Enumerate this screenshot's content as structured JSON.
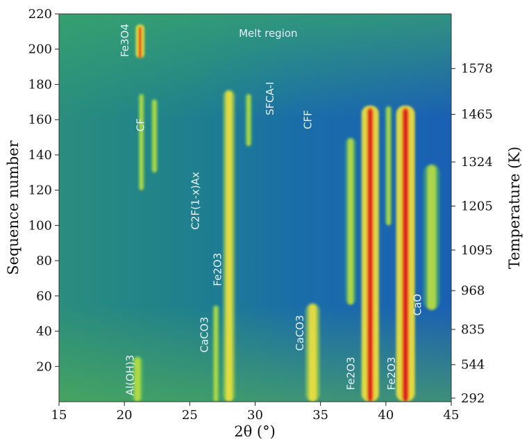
{
  "chart_data": {
    "type": "heatmap",
    "title": "",
    "xlabel": "2θ (°)",
    "ylabel_left": "Sequence number",
    "ylabel_right": "Temperature (K)",
    "xlim": [
      15,
      45
    ],
    "ylim": [
      0,
      220
    ],
    "x_ticks": [
      "15",
      "20",
      "25",
      "30",
      "35",
      "40",
      "45"
    ],
    "y_ticks": [
      "20",
      "40",
      "60",
      "80",
      "100",
      "120",
      "140",
      "160",
      "180",
      "200",
      "220"
    ],
    "right_ticks": [
      {
        "seq": 2,
        "label": "292"
      },
      {
        "seq": 21,
        "label": "544"
      },
      {
        "seq": 41,
        "label": "835"
      },
      {
        "seq": 63,
        "label": "968"
      },
      {
        "seq": 86,
        "label": "1095"
      },
      {
        "seq": 111,
        "label": "1205"
      },
      {
        "seq": 136,
        "label": "1324"
      },
      {
        "seq": 163,
        "label": "1465"
      },
      {
        "seq": 189,
        "label": "1578"
      }
    ],
    "colors": {
      "background": "#1c63b4",
      "background_low": "#1f8a8a",
      "medium": "#4fbf5a",
      "high": "#bfe040",
      "very_high": "#f2e33c",
      "peak": "#f0551e",
      "peak_core": "#d61b1b"
    },
    "bands": [
      {
        "x": 21.0,
        "y": [
          0,
          26
        ],
        "w": 0.5,
        "c": "medium"
      },
      {
        "x": 21.3,
        "y": [
          120,
          175
        ],
        "w": 0.28,
        "c": "medium"
      },
      {
        "x": 22.3,
        "y": [
          130,
          172
        ],
        "w": 0.3,
        "c": "medium"
      },
      {
        "x": 21.2,
        "y": [
          195,
          214
        ],
        "w": 0.3,
        "c": "peak"
      },
      {
        "x": 27.0,
        "y": [
          0,
          55
        ],
        "w": 0.3,
        "c": "medium"
      },
      {
        "x": 28.0,
        "y": [
          0,
          177
        ],
        "w": 0.5,
        "c": "high"
      },
      {
        "x": 29.5,
        "y": [
          145,
          175
        ],
        "w": 0.3,
        "c": "medium"
      },
      {
        "x": 34.4,
        "y": [
          0,
          56
        ],
        "w": 0.6,
        "c": "high"
      },
      {
        "x": 37.3,
        "y": [
          55,
          150
        ],
        "w": 0.45,
        "c": "medium"
      },
      {
        "x": 38.8,
        "y": [
          0,
          168
        ],
        "w": 0.6,
        "c": "peak"
      },
      {
        "x": 40.2,
        "y": [
          100,
          168
        ],
        "w": 0.3,
        "c": "medium"
      },
      {
        "x": 41.5,
        "y": [
          0,
          168
        ],
        "w": 0.65,
        "c": "peak"
      },
      {
        "x": 43.5,
        "y": [
          52,
          135
        ],
        "w": 0.7,
        "c": "medium"
      }
    ],
    "annotations": [
      {
        "text": "Fe3O4",
        "x": 20.3,
        "y": 205,
        "rotate": true
      },
      {
        "text": "Melt region",
        "x": 31.0,
        "y": 207,
        "rotate": false
      },
      {
        "text": "SFCA-I",
        "x": 31.4,
        "y": 172,
        "rotate": true
      },
      {
        "text": "CF",
        "x": 21.5,
        "y": 157,
        "rotate": true
      },
      {
        "text": "CFF",
        "x": 34.3,
        "y": 160,
        "rotate": true
      },
      {
        "text": "C2F(1-x)Ax",
        "x": 25.7,
        "y": 114,
        "rotate": true
      },
      {
        "text": "Fe2O3",
        "x": 27.4,
        "y": 75,
        "rotate": true
      },
      {
        "text": "CaCO3",
        "x": 26.4,
        "y": 38,
        "rotate": true
      },
      {
        "text": "CaCO3",
        "x": 33.7,
        "y": 39,
        "rotate": true
      },
      {
        "text": "Al(OH)3",
        "x": 20.7,
        "y": 15,
        "rotate": true
      },
      {
        "text": "Fe2O3",
        "x": 37.6,
        "y": 16,
        "rotate": true
      },
      {
        "text": "Fe2O3",
        "x": 40.7,
        "y": 16,
        "rotate": true
      },
      {
        "text": "CaO",
        "x": 42.7,
        "y": 55,
        "rotate": true
      }
    ]
  }
}
